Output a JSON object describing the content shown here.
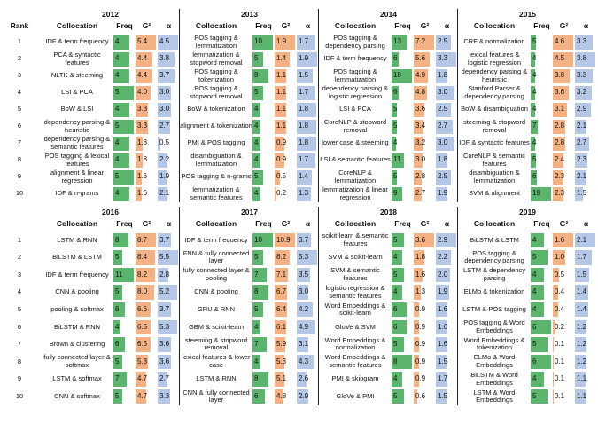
{
  "headers": {
    "rank": "Rank",
    "collocation": "Collocation",
    "freq": "Freq",
    "g2": "G²",
    "alpha": "α"
  },
  "ranks": [
    1,
    2,
    3,
    4,
    5,
    6,
    7,
    8,
    9,
    10
  ],
  "blocks": [
    {
      "year": "2012",
      "rows": [
        [
          "IDF & term frequency",
          4,
          "5.4",
          "4.5"
        ],
        [
          "PCA & syntactic features",
          4,
          "4.4",
          "3.8"
        ],
        [
          "NLTK & steeming",
          4,
          "4.4",
          "3.7"
        ],
        [
          "LSI & PCA",
          5,
          "4.0",
          "3.0"
        ],
        [
          "BoW & LSI",
          4,
          "3.3",
          "3.0"
        ],
        [
          "dependency parsing & heuristic",
          5,
          "3.3",
          "2.7"
        ],
        [
          "dependency parsing & semantic features",
          4,
          "1.8",
          "0.5"
        ],
        [
          "POS tagging & lexical features",
          4,
          "1.8",
          "2.2"
        ],
        [
          "alignment & linear regression",
          5,
          "1.6",
          "1.9"
        ],
        [
          "IDF & n-grams",
          4,
          "1.6",
          "2.1"
        ]
      ]
    },
    {
      "year": "2013",
      "rows": [
        [
          "POS tagging & lemmatization",
          10,
          "1.9",
          "1.7"
        ],
        [
          "lemmatization & stopword removal",
          5,
          "1.4",
          "1.9"
        ],
        [
          "POS tagging & tokenization",
          8,
          "1.1",
          "1.5"
        ],
        [
          "POS tagging & stopword removal",
          5,
          "1.1",
          "1.7"
        ],
        [
          "BoW & tokenization",
          4,
          "1.1",
          "1.8"
        ],
        [
          "alignment & tokenization",
          4,
          "1.1",
          "1.8"
        ],
        [
          "PMI & POS tagging",
          4,
          "0.9",
          "1.8"
        ],
        [
          "disambiguation & lemmatization",
          4,
          "0.9",
          "1.7"
        ],
        [
          "POS tagging & n-grams",
          5,
          "0.5",
          "1.4"
        ],
        [
          "lemmatization & semantic features",
          4,
          "0.2",
          "1.3"
        ]
      ]
    },
    {
      "year": "2014",
      "rows": [
        [
          "POS tagging & dependency parsing",
          13,
          "7.2",
          "2.5"
        ],
        [
          "IDF & term frequency",
          6,
          "5.6",
          "3.3"
        ],
        [
          "POS tagging & lemmatization",
          18,
          "4.9",
          "1.8"
        ],
        [
          "dependency parsing & logistic regression",
          6,
          "4.8",
          "3.0"
        ],
        [
          "LSI & PCA",
          5,
          "3.6",
          "2.5"
        ],
        [
          "CoreNLP & stopword removal",
          5,
          "3.4",
          "2.7"
        ],
        [
          "lower case & steeming",
          4,
          "3.2",
          "3.0"
        ],
        [
          "LSI & semantic features",
          11,
          "3.0",
          "1.8"
        ],
        [
          "CoreNLP & lemmatization",
          5,
          "2.8",
          "2.5"
        ],
        [
          "lemmatization & linear regression",
          9,
          "2.7",
          "1.9"
        ]
      ]
    },
    {
      "year": "2015",
      "rows": [
        [
          "CRF & normalization",
          5,
          "4.6",
          "3.3"
        ],
        [
          "lexical features & logistic regression",
          4,
          "4.5",
          "3.8"
        ],
        [
          "dependency parsing & heuristic",
          4,
          "3.8",
          "3.3"
        ],
        [
          "Stanford Parser & dependency parsing",
          4,
          "3.6",
          "3.2"
        ],
        [
          "BoW & disambiguation",
          4,
          "3.1",
          "2.9"
        ],
        [
          "steeming & stopword removal",
          7,
          "2.8",
          "2.1"
        ],
        [
          "IDF & syntactic features",
          4,
          "2.8",
          "2.7"
        ],
        [
          "CoreNLP & semantic features",
          5,
          "2.4",
          "2.3"
        ],
        [
          "disambiguation & lemmatization",
          6,
          "2.3",
          "2.1"
        ],
        [
          "SVM & alignment",
          19,
          "2.3",
          "1.5"
        ]
      ]
    },
    {
      "year": "2016",
      "rows": [
        [
          "LSTM & RNN",
          8,
          "8.7",
          "3.7"
        ],
        [
          "BiLSTM & LSTM",
          5,
          "8.4",
          "5.5"
        ],
        [
          "IDF & term frequency",
          11,
          "8.2",
          "2.8"
        ],
        [
          "CNN & pooling",
          5,
          "8.0",
          "5.2"
        ],
        [
          "pooling & softmax",
          6,
          "6.6",
          "3.7"
        ],
        [
          "BiLSTM & RNN",
          4,
          "6.5",
          "5.3"
        ],
        [
          "Brown & clustering",
          6,
          "6.5",
          "3.6"
        ],
        [
          "fully connected layer & softmax",
          5,
          "5.3",
          "3.6"
        ],
        [
          "LSTM & softmax",
          7,
          "4.7",
          "2.7"
        ],
        [
          "CNN & softmax",
          5,
          "4.7",
          "3.3"
        ]
      ]
    },
    {
      "year": "2017",
      "rows": [
        [
          "IDF & term frequency",
          10,
          "10.9",
          "3.7"
        ],
        [
          "FNN & fully connected layer",
          5,
          "8.2",
          "5.3"
        ],
        [
          "fully connected layer & pooling",
          7,
          "7.1",
          "3.5"
        ],
        [
          "CNN & pooling",
          8,
          "6.7",
          "3.0"
        ],
        [
          "GRU & RNN",
          5,
          "6.4",
          "4.2"
        ],
        [
          "GBM & scikit-learn",
          4,
          "6.1",
          "4.9"
        ],
        [
          "steeming & stopword removal",
          7,
          "5.9",
          "3.1"
        ],
        [
          "lexical features & lower case",
          4,
          "5.3",
          "4.3"
        ],
        [
          "LSTM & RNN",
          8,
          "5.1",
          "2.6"
        ],
        [
          "CNN & fully connected layer",
          6,
          "4.8",
          "2.9"
        ]
      ]
    },
    {
      "year": "2018",
      "rows": [
        [
          "scikit-learn & semantic features",
          5,
          "3.6",
          "2.9"
        ],
        [
          "SVM & scikit-learn",
          4,
          "1.8",
          "2.2"
        ],
        [
          "SVM & semantic features",
          5,
          "1.6",
          "2.0"
        ],
        [
          "logistic regression & semantic features",
          4,
          "1.3",
          "1.9"
        ],
        [
          "Word Embeddings & scikit-learn",
          6,
          "0.9",
          "1.6"
        ],
        [
          "GloVe & SVM",
          6,
          "0.9",
          "1.6"
        ],
        [
          "Word Embeddings & normalization",
          5,
          "0.9",
          "1.6"
        ],
        [
          "Word Embeddings & semantic features",
          8,
          "0.9",
          "1.5"
        ],
        [
          "PMI & skipgram",
          4,
          "0.9",
          "1.7"
        ],
        [
          "GloVe & PMI",
          5,
          "0.6",
          "1.5"
        ]
      ]
    },
    {
      "year": "2019",
      "rows": [
        [
          "BiLSTM & LSTM",
          4,
          "1.6",
          "2.1"
        ],
        [
          "POS tagging & dependency parsing",
          5,
          "1.0",
          "1.7"
        ],
        [
          "LSTM & dependency parsing",
          4,
          "0.5",
          "1.5"
        ],
        [
          "ELMo & tokenization",
          4,
          "0.4",
          "1.4"
        ],
        [
          "LSTM & POS tagging",
          4,
          "0.4",
          "1.4"
        ],
        [
          "POS tagging & Word Embeddings",
          6,
          "0.2",
          "1.2"
        ],
        [
          "Word Embeddings & tokenization",
          5,
          "0.1",
          "1.2"
        ],
        [
          "ELMo & Word Embeddings",
          6,
          "0.1",
          "1.2"
        ],
        [
          "BiLSTM & Word Embeddings",
          4,
          "0.1",
          "1.1"
        ],
        [
          "LSTM & Word Embeddings",
          5,
          "0.1",
          "1.1"
        ]
      ]
    }
  ]
}
